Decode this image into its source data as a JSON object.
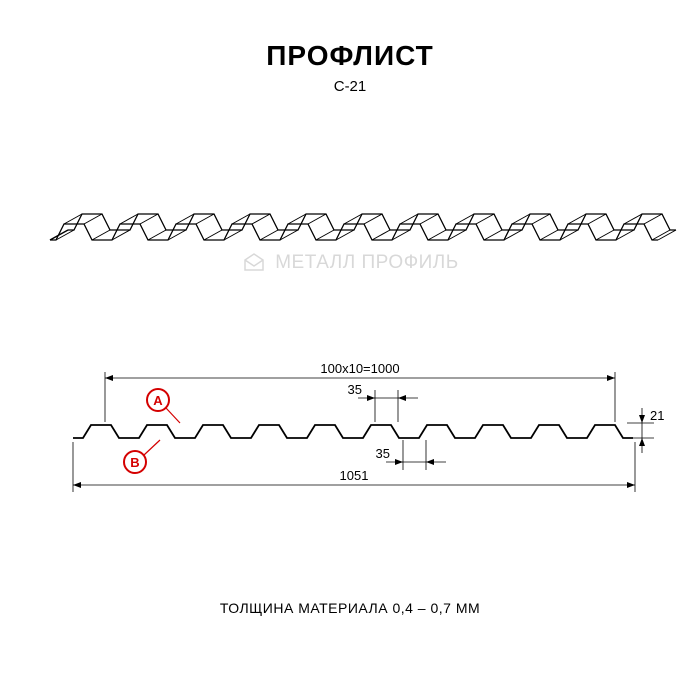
{
  "title": "ПРОФЛИСТ",
  "subtitle": "С-21",
  "watermark": "МЕТАЛЛ ПРОФИЛЬ",
  "footer": "ТОЛЩИНА МАТЕРИАЛА 0,4 – 0,7 ММ",
  "dimensions": {
    "top_width": "100x10=1000",
    "bottom_width": "1051",
    "crest_width": "35",
    "valley_width": "35",
    "height": "21"
  },
  "markers": {
    "a": "A",
    "b": "B"
  },
  "styling": {
    "stroke_color": "#000000",
    "stroke_width": 1.5,
    "marker_border": "#d40000",
    "marker_text": "#d40000",
    "marker_radius": 11,
    "marker_stroke": 2,
    "dim_fontsize": 13,
    "dim_color": "#000000",
    "background": "#ffffff",
    "watermark_color": "#d8d8d8",
    "profile": {
      "type": "trapezoidal",
      "periods": 10,
      "crest_w": 20,
      "valley_w": 20,
      "slope_w": 8,
      "amp": 13
    }
  }
}
